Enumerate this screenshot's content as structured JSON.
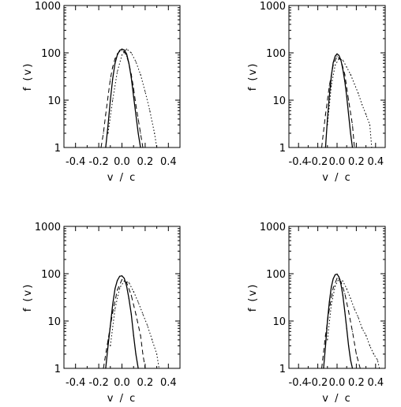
{
  "chart_data": [
    {
      "type": "line",
      "xlabel": "v / c",
      "ylabel": "f (v)",
      "x_tick_labels": [
        "-0.4",
        "-0.2",
        "0.0",
        "0.2",
        "0.4"
      ],
      "y_tick_labels": [
        "1",
        "10",
        "100",
        "1000"
      ],
      "xlim": [
        -0.5,
        0.5
      ],
      "ylim": [
        1,
        1000
      ],
      "y_scale": "log",
      "series": [
        {
          "style": "solid",
          "x": [
            -0.14,
            -0.12,
            -0.1,
            -0.08,
            -0.06,
            -0.04,
            -0.02,
            0.0,
            0.02,
            0.04,
            0.06,
            0.08,
            0.1,
            0.12,
            0.14,
            0.16
          ],
          "values": [
            1,
            3,
            10,
            28,
            60,
            90,
            112,
            120,
            115,
            95,
            60,
            30,
            12,
            5,
            2,
            1
          ]
        },
        {
          "style": "dashed",
          "x": [
            -0.18,
            -0.16,
            -0.14,
            -0.12,
            -0.1,
            -0.08,
            -0.06,
            -0.04,
            -0.02,
            0.0,
            0.02,
            0.04,
            0.06,
            0.08,
            0.1,
            0.12,
            0.14,
            0.16,
            0.18
          ],
          "values": [
            1,
            2,
            5,
            12,
            28,
            50,
            75,
            95,
            108,
            112,
            105,
            85,
            60,
            35,
            18,
            8,
            4,
            2,
            1
          ]
        },
        {
          "style": "dotted",
          "x": [
            -0.12,
            -0.08,
            -0.04,
            0.0,
            0.04,
            0.08,
            0.12,
            0.16,
            0.2,
            0.24,
            0.28,
            0.3
          ],
          "values": [
            2,
            10,
            40,
            90,
            120,
            100,
            65,
            35,
            15,
            6,
            2,
            1
          ]
        }
      ]
    },
    {
      "type": "line",
      "xlabel": "v / c",
      "ylabel": "f (v)",
      "x_tick_labels": [
        "-0.4",
        "-0.2",
        "0.0",
        "0.2",
        "0.4"
      ],
      "y_tick_labels": [
        "1",
        "10",
        "100",
        "1000"
      ],
      "xlim": [
        -0.5,
        0.5
      ],
      "ylim": [
        1,
        1000
      ],
      "y_scale": "log",
      "series": [
        {
          "style": "solid",
          "x": [
            -0.12,
            -0.1,
            -0.08,
            -0.06,
            -0.04,
            -0.02,
            0.0,
            0.02,
            0.04,
            0.06,
            0.08,
            0.1,
            0.12,
            0.14,
            0.16
          ],
          "values": [
            1,
            4,
            12,
            32,
            62,
            85,
            95,
            88,
            70,
            45,
            25,
            12,
            5,
            2,
            1
          ]
        },
        {
          "style": "dashed",
          "x": [
            -0.16,
            -0.12,
            -0.08,
            -0.04,
            0.0,
            0.04,
            0.08,
            0.12,
            0.16,
            0.18
          ],
          "values": [
            1,
            5,
            20,
            55,
            85,
            70,
            35,
            10,
            3,
            1
          ]
        },
        {
          "style": "dotted",
          "x": [
            -0.1,
            -0.06,
            -0.02,
            0.02,
            0.06,
            0.1,
            0.14,
            0.18,
            0.22,
            0.26,
            0.3,
            0.34,
            0.36
          ],
          "values": [
            3,
            20,
            55,
            75,
            70,
            50,
            35,
            22,
            14,
            8,
            5,
            3,
            1
          ]
        }
      ]
    },
    {
      "type": "line",
      "xlabel": "v / c",
      "ylabel": "f (v)",
      "x_tick_labels": [
        "-0.4",
        "-0.2",
        "0.0",
        "0.2",
        "0.4"
      ],
      "y_tick_labels": [
        "1",
        "10",
        "100",
        "1000"
      ],
      "xlim": [
        -0.5,
        0.5
      ],
      "ylim": [
        1,
        1000
      ],
      "y_scale": "log",
      "series": [
        {
          "style": "solid",
          "x": [
            -0.14,
            -0.12,
            -0.1,
            -0.08,
            -0.06,
            -0.04,
            -0.02,
            0.0,
            0.02,
            0.04,
            0.06,
            0.08,
            0.1,
            0.12,
            0.14
          ],
          "values": [
            1,
            3,
            8,
            22,
            48,
            72,
            88,
            90,
            80,
            55,
            30,
            14,
            5,
            2,
            1
          ]
        },
        {
          "style": "dashed",
          "x": [
            -0.16,
            -0.12,
            -0.08,
            -0.04,
            0.0,
            0.04,
            0.08,
            0.12,
            0.16,
            0.18,
            0.2
          ],
          "values": [
            1,
            4,
            15,
            45,
            75,
            65,
            35,
            14,
            5,
            2,
            1
          ]
        },
        {
          "style": "dotted",
          "x": [
            -0.1,
            -0.06,
            -0.02,
            0.02,
            0.06,
            0.1,
            0.14,
            0.18,
            0.22,
            0.26,
            0.3,
            0.32
          ],
          "values": [
            3,
            18,
            50,
            70,
            65,
            42,
            25,
            14,
            8,
            4,
            2,
            1
          ]
        }
      ]
    },
    {
      "type": "line",
      "xlabel": "v / c",
      "ylabel": "f (v)",
      "x_tick_labels": [
        "-0.4",
        "-0.2",
        "0.0",
        "0.2",
        "0.4"
      ],
      "y_tick_labels": [
        "1",
        "10",
        "100",
        "1000"
      ],
      "xlim": [
        -0.5,
        0.5
      ],
      "ylim": [
        1,
        1000
      ],
      "y_scale": "log",
      "series": [
        {
          "style": "solid",
          "x": [
            -0.14,
            -0.12,
            -0.1,
            -0.08,
            -0.06,
            -0.04,
            -0.02,
            0.0,
            0.02,
            0.04,
            0.06,
            0.08,
            0.1,
            0.12,
            0.14,
            0.16
          ],
          "values": [
            1,
            3,
            10,
            25,
            52,
            78,
            95,
            98,
            85,
            60,
            35,
            16,
            7,
            3,
            1.5,
            1
          ]
        },
        {
          "style": "dashed",
          "x": [
            -0.16,
            -0.12,
            -0.08,
            -0.04,
            0.0,
            0.04,
            0.08,
            0.12,
            0.16,
            0.2,
            0.24
          ],
          "values": [
            1,
            5,
            18,
            50,
            80,
            68,
            38,
            16,
            6,
            2,
            1
          ]
        },
        {
          "style": "dotted",
          "x": [
            -0.1,
            -0.06,
            -0.02,
            0.02,
            0.06,
            0.1,
            0.14,
            0.18,
            0.22,
            0.26,
            0.3,
            0.34,
            0.38,
            0.42,
            0.44
          ],
          "values": [
            4,
            22,
            55,
            78,
            70,
            48,
            30,
            18,
            12,
            7,
            5,
            3,
            2,
            1.5,
            1
          ]
        }
      ]
    }
  ]
}
